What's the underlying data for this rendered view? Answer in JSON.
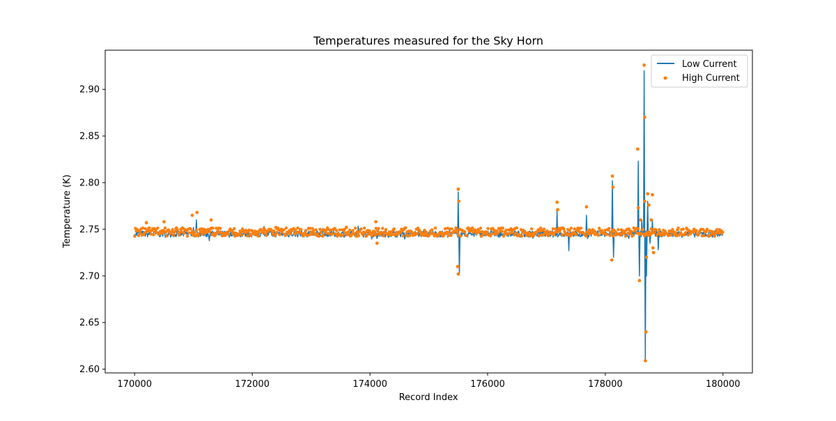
{
  "chart_data": {
    "type": "line",
    "title": "Temperatures measured for the Sky Horn",
    "xlabel": "Record Index",
    "ylabel": "Temperature (K)",
    "xlim": [
      169500,
      180500
    ],
    "ylim": [
      2.596,
      2.942
    ],
    "x_ticks": [
      170000,
      172000,
      174000,
      176000,
      178000,
      180000
    ],
    "x_tick_labels": [
      "170000",
      "172000",
      "174000",
      "176000",
      "178000",
      "180000"
    ],
    "y_ticks": [
      2.6,
      2.65,
      2.7,
      2.75,
      2.8,
      2.85,
      2.9
    ],
    "y_tick_labels": [
      "2.60",
      "2.65",
      "2.70",
      "2.75",
      "2.80",
      "2.85",
      "2.90"
    ],
    "grid": false,
    "legend_position": "top-right",
    "series": [
      {
        "name": "Low Current",
        "style": "line",
        "color": "#1f77b4",
        "baseline": 2.745,
        "x": [
          170000,
          170700,
          171000,
          171050,
          171400,
          172000,
          172500,
          173000,
          173500,
          174000,
          174120,
          174500,
          175000,
          175480,
          175500,
          175520,
          176000,
          176500,
          177000,
          177180,
          177200,
          177380,
          177400,
          177680,
          177700,
          178100,
          178120,
          178140,
          178400,
          178560,
          178580,
          178620,
          178660,
          178680,
          178700,
          178720,
          178760,
          178800,
          178900,
          179000,
          179500,
          180000
        ],
        "y": [
          2.745,
          2.744,
          2.752,
          2.76,
          2.745,
          2.746,
          2.745,
          2.744,
          2.745,
          2.746,
          2.74,
          2.745,
          2.745,
          2.745,
          2.79,
          2.703,
          2.745,
          2.746,
          2.744,
          2.77,
          2.743,
          2.727,
          2.744,
          2.765,
          2.74,
          2.745,
          2.802,
          2.72,
          2.74,
          2.823,
          2.7,
          2.76,
          2.92,
          2.61,
          2.7,
          2.78,
          2.735,
          2.76,
          2.728,
          2.746,
          2.745,
          2.744
        ]
      },
      {
        "name": "High Current",
        "style": "scatter",
        "color": "#ff7f0e",
        "x": [
          170200,
          170500,
          170980,
          171060,
          171300,
          172400,
          173600,
          174100,
          174120,
          175500,
          175510,
          175500,
          175490,
          177180,
          177190,
          177390,
          177680,
          178120,
          178130,
          178110,
          178550,
          178560,
          178580,
          178600,
          178660,
          178670,
          178680,
          178690,
          178670,
          178700,
          178720,
          178740,
          178780,
          178800,
          178810,
          178820
        ],
        "y": [
          2.757,
          2.758,
          2.765,
          2.768,
          2.76,
          2.752,
          2.752,
          2.758,
          2.735,
          2.793,
          2.78,
          2.702,
          2.71,
          2.779,
          2.771,
          2.745,
          2.774,
          2.807,
          2.795,
          2.717,
          2.836,
          2.773,
          2.695,
          2.76,
          2.926,
          2.87,
          2.609,
          2.64,
          2.78,
          2.72,
          2.788,
          2.776,
          2.76,
          2.787,
          2.73,
          2.725
        ]
      }
    ]
  }
}
